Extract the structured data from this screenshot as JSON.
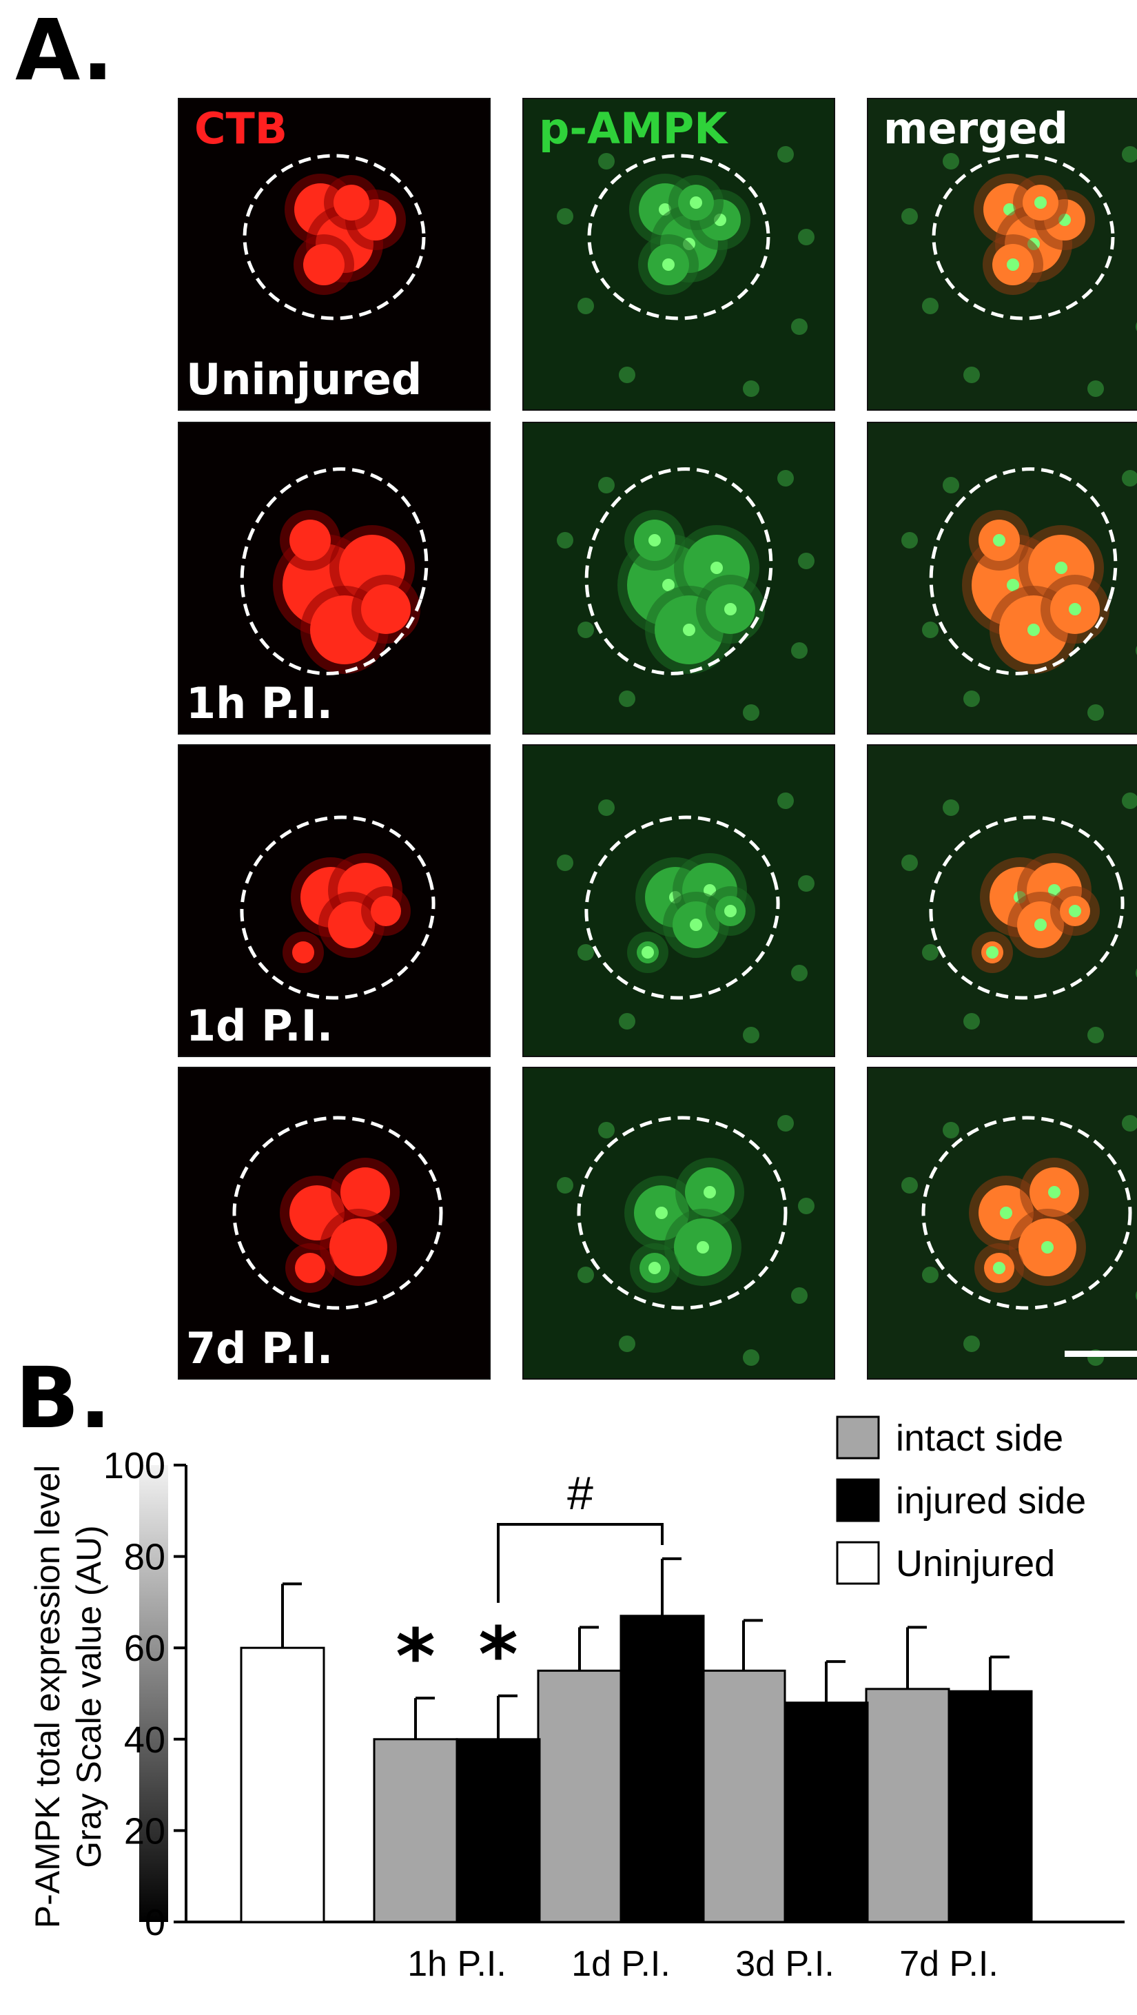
{
  "panelA": {
    "label": "A.",
    "channels": [
      {
        "name": "CTB",
        "color": "#ff2020"
      },
      {
        "name": "p-AMPK",
        "color": "#2fd23a"
      },
      {
        "name": "merged",
        "color": "#ffffff"
      }
    ],
    "timepoints": [
      "Uninjured",
      "1h P.I.",
      "1d P.I.",
      "7d P.I."
    ]
  },
  "panelB": {
    "label": "B.",
    "annotation_hash": "#",
    "annotation_star": "*"
  },
  "chart_data": {
    "type": "bar",
    "ylabel_line1": "P-AMPK total expression level",
    "ylabel_line2": "Gray Scale value (AU)",
    "ylim": [
      0,
      100
    ],
    "yticks": [
      0,
      20,
      40,
      60,
      80,
      100
    ],
    "categories": [
      "",
      "1h P.I.",
      "1d P.I.",
      "3d P.I.",
      "7d P.I."
    ],
    "series": [
      {
        "name": "intact side",
        "color": "#a6a6a6",
        "values": [
          null,
          40,
          55,
          55,
          51
        ],
        "errors": [
          null,
          9,
          9.5,
          11,
          13.5
        ]
      },
      {
        "name": "injured side",
        "color": "#000000",
        "values": [
          null,
          40,
          67,
          48,
          50.5
        ],
        "errors": [
          null,
          9.5,
          12.5,
          9,
          7.5
        ]
      },
      {
        "name": "Uninjured",
        "color": "#ffffff",
        "values": [
          60,
          null,
          null,
          null,
          null
        ],
        "errors": [
          14,
          null,
          null,
          null,
          null
        ]
      }
    ],
    "significance": [
      {
        "marker": "*",
        "category": "1h P.I.",
        "series": "intact side"
      },
      {
        "marker": "*",
        "category": "1h P.I.",
        "series": "injured side"
      }
    ],
    "bracket": {
      "marker": "#",
      "from": {
        "category": "1h P.I.",
        "series": "injured side"
      },
      "to": {
        "category": "1d P.I.",
        "series": "injured side"
      }
    },
    "legend_position": "top-right",
    "grid": false
  }
}
